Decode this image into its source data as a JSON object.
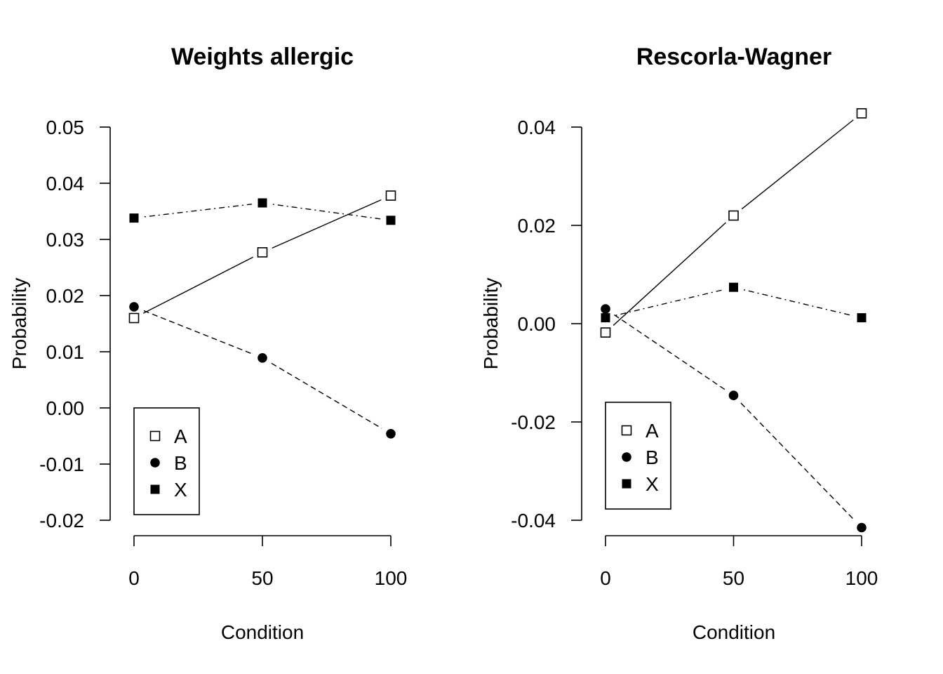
{
  "chart_data": [
    {
      "type": "line",
      "title": "Weights allergic",
      "xlabel": "Condition",
      "ylabel": "Probability",
      "x": [
        0,
        50,
        100
      ],
      "xticks": [
        "0",
        "50",
        "100"
      ],
      "ylim": [
        -0.02,
        0.05
      ],
      "yticks": [
        "-0.02",
        "-0.01",
        "0.00",
        "0.01",
        "0.02",
        "0.03",
        "0.04",
        "0.05"
      ],
      "series": [
        {
          "name": "A",
          "marker": "open-square",
          "line": "solid",
          "values": [
            0.016,
            0.0277,
            0.0378
          ]
        },
        {
          "name": "B",
          "marker": "filled-circle",
          "line": "dashed",
          "values": [
            0.018,
            0.0089,
            -0.0046
          ]
        },
        {
          "name": "X",
          "marker": "filled-square",
          "line": "dotdash",
          "values": [
            0.0338,
            0.0365,
            0.0334
          ]
        }
      ],
      "legend": {
        "position": "bottom-left",
        "entries": [
          "A",
          "B",
          "X"
        ]
      }
    },
    {
      "type": "line",
      "title": "Rescorla-Wagner",
      "xlabel": "Condition",
      "ylabel": "Probability",
      "x": [
        0,
        50,
        100
      ],
      "xticks": [
        "0",
        "50",
        "100"
      ],
      "ylim": [
        -0.04,
        0.04
      ],
      "yticks": [
        "-0.04",
        "-0.02",
        "0.00",
        "0.02",
        "0.04"
      ],
      "series": [
        {
          "name": "A",
          "marker": "open-square",
          "line": "solid",
          "values": [
            -0.0018,
            0.022,
            0.0428
          ]
        },
        {
          "name": "B",
          "marker": "filled-circle",
          "line": "dashed",
          "values": [
            0.003,
            -0.0146,
            -0.0415
          ]
        },
        {
          "name": "X",
          "marker": "filled-square",
          "line": "dotdash",
          "values": [
            0.0012,
            0.0074,
            0.0012
          ]
        }
      ],
      "legend": {
        "position": "bottom-left",
        "entries": [
          "A",
          "B",
          "X"
        ]
      }
    }
  ]
}
